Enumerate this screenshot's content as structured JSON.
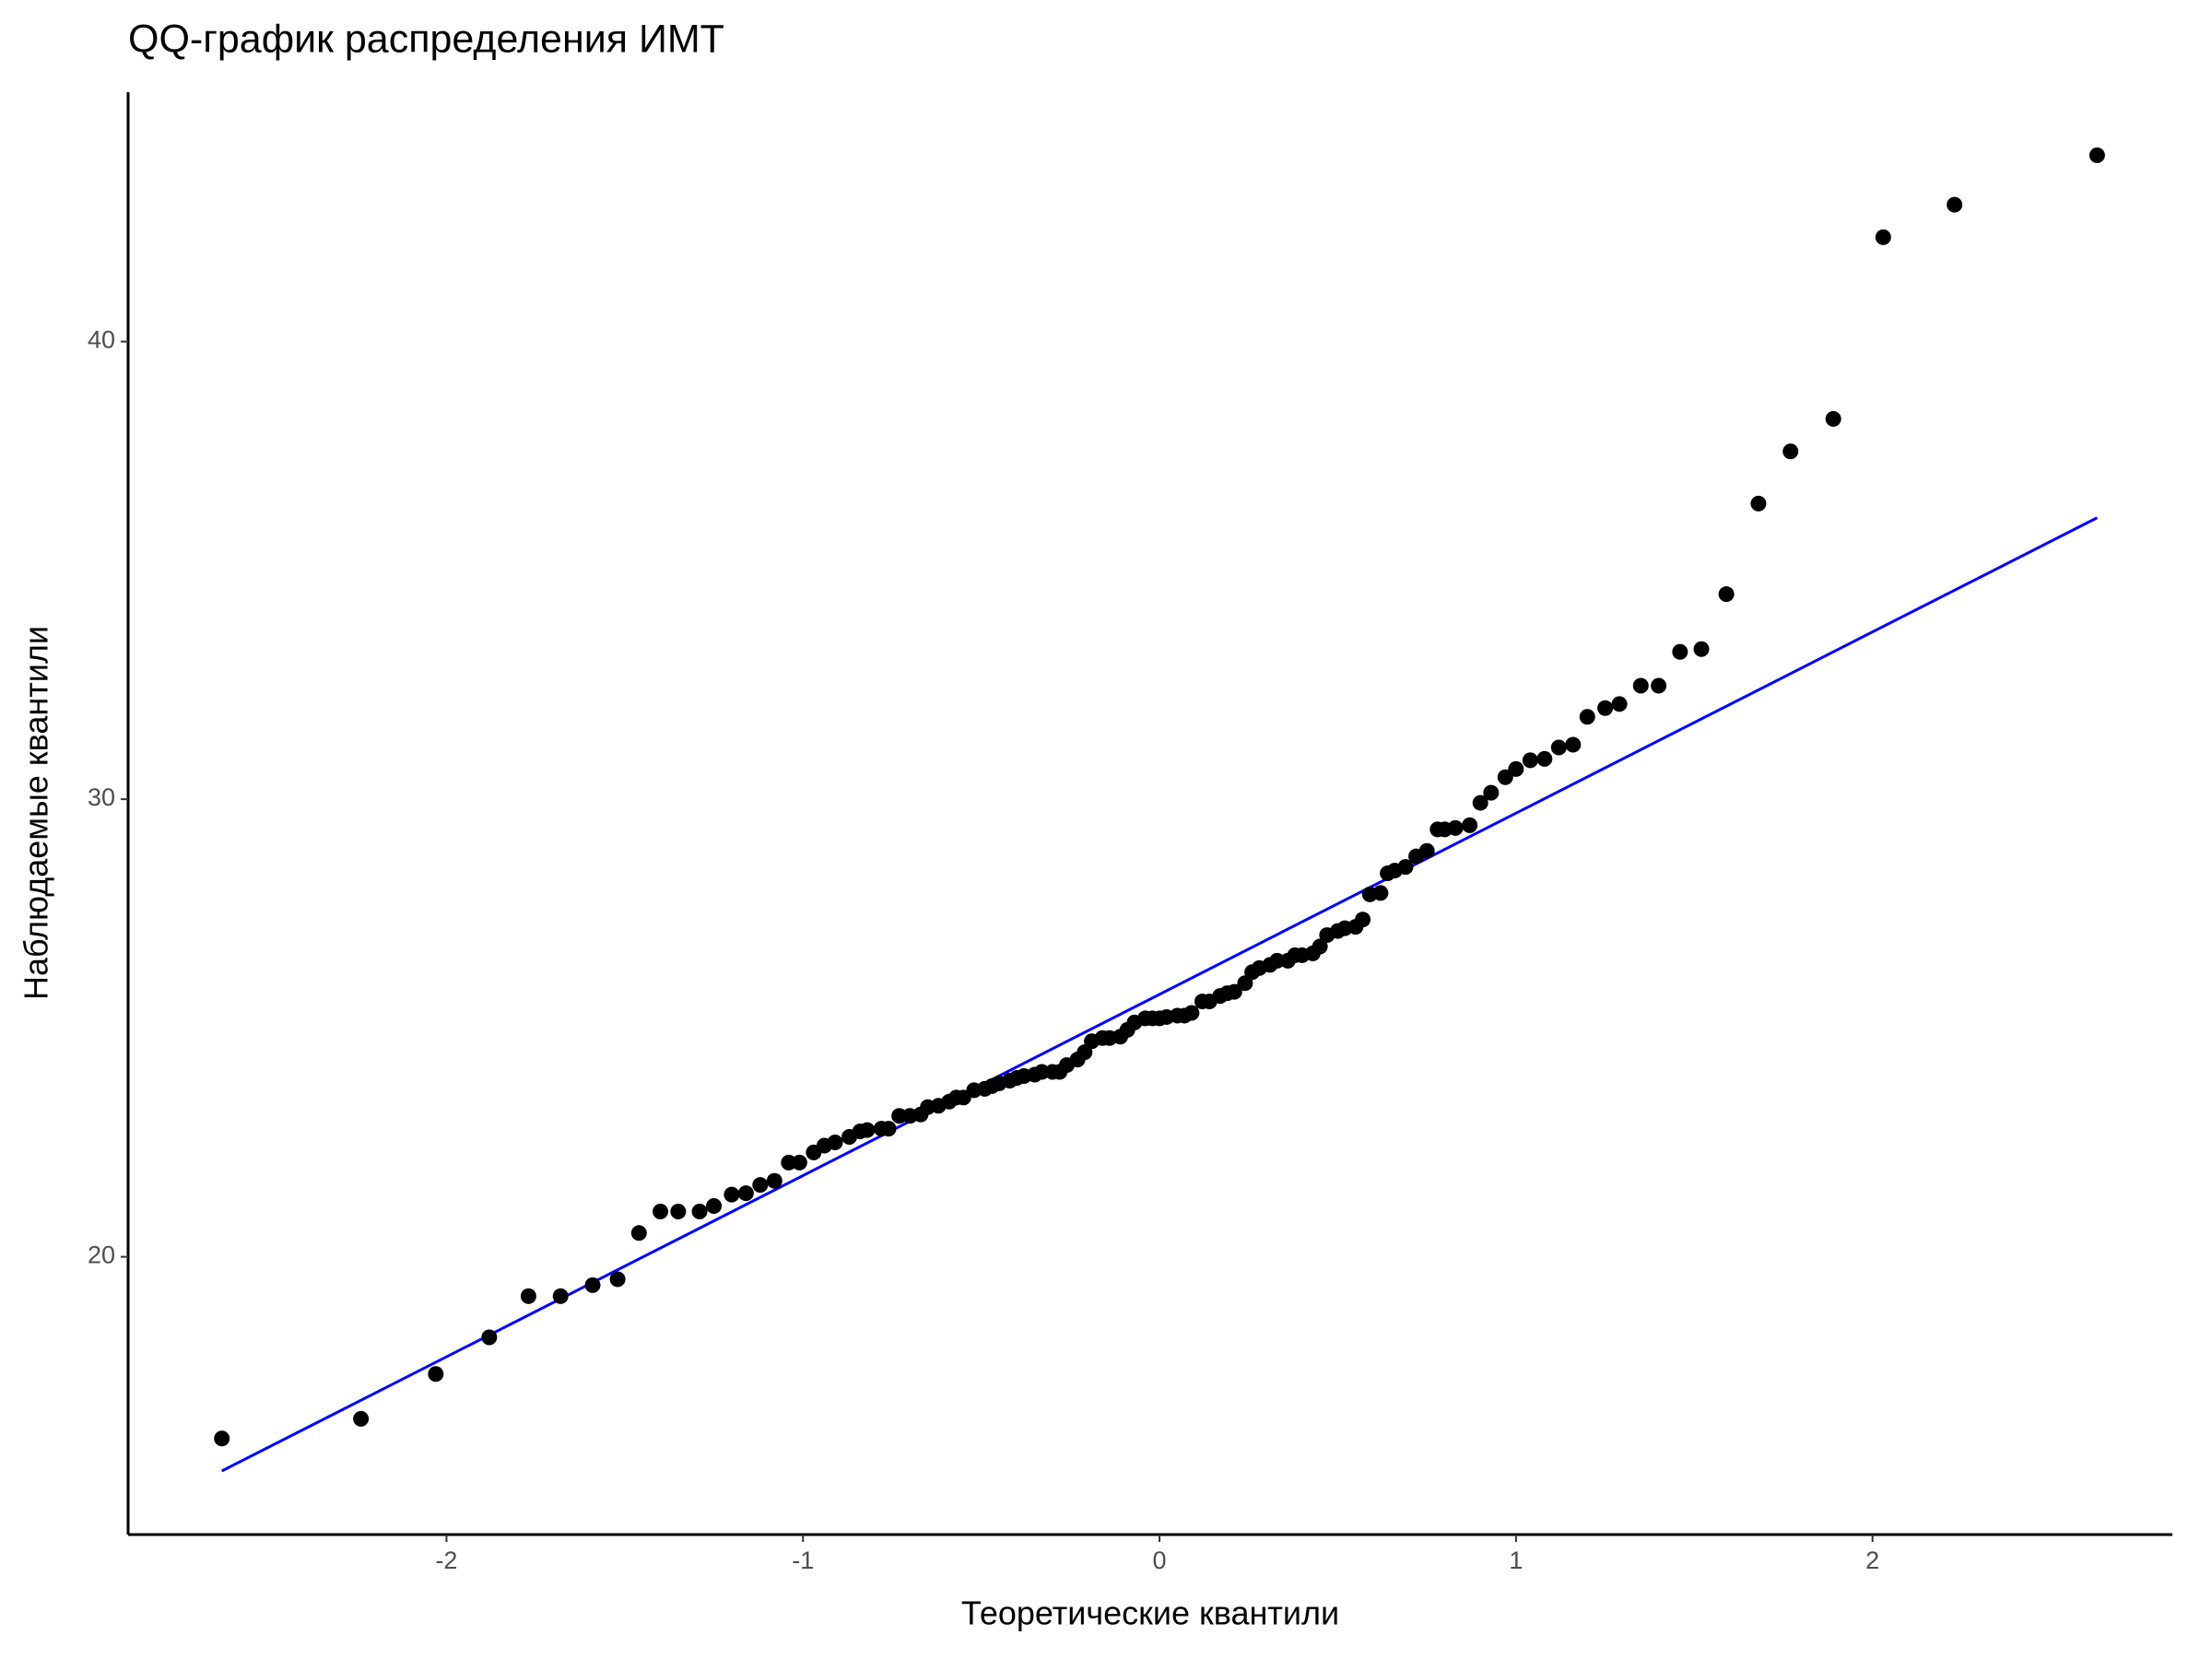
{
  "chart_data": {
    "type": "scatter",
    "title": "QQ-график распределения ИМТ",
    "x_label": "Теоретические квантили",
    "y_label": "Наблюдаемые квантили",
    "color": "#000000",
    "x": [
      -2.63,
      -2.24,
      -2.03,
      -1.88,
      -1.77,
      -1.68,
      -1.59,
      -1.52,
      -1.46,
      -1.4,
      -1.35,
      -1.29,
      -1.25,
      -1.2,
      -1.16,
      -1.12,
      -1.08,
      -1.04,
      -1.01,
      -0.97,
      -0.94,
      -0.91,
      -0.87,
      -0.84,
      -0.82,
      -0.78,
      -0.76,
      -0.73,
      -0.7,
      -0.67,
      -0.65,
      -0.62,
      -0.59,
      -0.57,
      -0.55,
      -0.52,
      -0.49,
      -0.47,
      -0.45,
      -0.42,
      -0.4,
      -0.38,
      -0.35,
      -0.33,
      -0.3,
      -0.28,
      -0.26,
      -0.23,
      -0.21,
      -0.19,
      -0.16,
      -0.14,
      -0.11,
      -0.09,
      -0.07,
      -0.04,
      -0.02,
      0,
      0.02,
      0.05,
      0.07,
      0.09,
      0.12,
      0.14,
      0.17,
      0.19,
      0.21,
      0.24,
      0.26,
      0.28,
      0.31,
      0.33,
      0.36,
      0.38,
      0.4,
      0.43,
      0.45,
      0.47,
      0.5,
      0.52,
      0.55,
      0.57,
      0.59,
      0.62,
      0.64,
      0.66,
      0.69,
      0.72,
      0.75,
      0.78,
      0.8,
      0.83,
      0.87,
      0.9,
      0.93,
      0.97,
      1.0,
      1.04,
      1.08,
      1.12,
      1.16,
      1.2,
      1.25,
      1.29,
      1.35,
      1.4,
      1.46,
      1.52,
      1.59,
      1.68,
      1.77,
      1.89,
      2.03,
      2.23,
      2.63
    ],
    "values": [
      16.03,
      16.46,
      17.44,
      18.24,
      19.14,
      19.14,
      19.38,
      19.51,
      20.52,
      20.99,
      20.99,
      20.99,
      21.11,
      21.36,
      21.39,
      21.57,
      21.66,
      22.06,
      22.06,
      22.28,
      22.43,
      22.5,
      22.62,
      22.74,
      22.77,
      22.8,
      22.8,
      23.08,
      23.08,
      23.11,
      23.27,
      23.3,
      23.39,
      23.48,
      23.48,
      23.64,
      23.67,
      23.73,
      23.79,
      23.85,
      23.91,
      23.95,
      23.98,
      24.04,
      24.04,
      24.04,
      24.19,
      24.31,
      24.47,
      24.71,
      24.78,
      24.78,
      24.81,
      24.96,
      25.12,
      25.21,
      25.21,
      25.21,
      25.24,
      25.27,
      25.27,
      25.33,
      25.58,
      25.58,
      25.7,
      25.76,
      25.79,
      25.98,
      26.22,
      26.31,
      26.38,
      26.47,
      26.47,
      26.59,
      26.59,
      26.63,
      26.78,
      27.03,
      27.12,
      27.18,
      27.21,
      27.37,
      27.92,
      27.95,
      28.38,
      28.44,
      28.52,
      28.75,
      28.87,
      29.34,
      29.34,
      29.37,
      29.43,
      29.92,
      30.14,
      30.48,
      30.66,
      30.85,
      30.88,
      31.13,
      31.19,
      31.8,
      31.99,
      32.08,
      32.48,
      32.48,
      33.22,
      33.28,
      34.48,
      36.46,
      37.6,
      38.31,
      42.28,
      42.99,
      44.07
    ],
    "line": {
      "x": [
        -2.63,
        2.63
      ],
      "y": [
        15.32,
        36.15
      ],
      "color": "#0000ff"
    },
    "xlim": [
      -2.893,
      2.841
    ],
    "ylim": [
      13.93,
      45.45
    ],
    "xticks": [
      -2,
      -1,
      0,
      1,
      2
    ],
    "yticks": [
      20,
      30,
      40
    ]
  }
}
